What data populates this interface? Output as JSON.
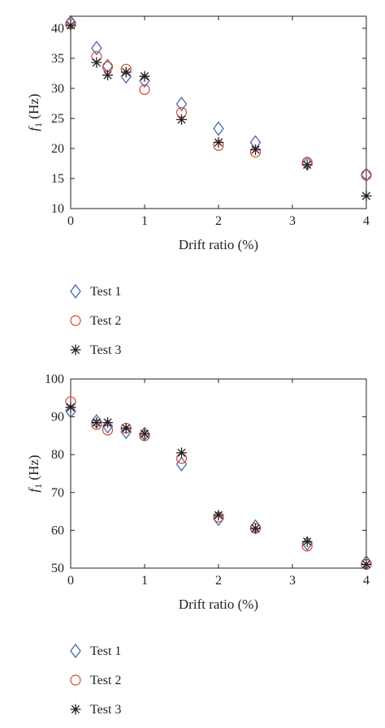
{
  "colors": {
    "test1": "#3a5fa8",
    "test2": "#d6472b",
    "test3": "#231f20",
    "axis": "#231f20"
  },
  "chart_data": [
    {
      "type": "scatter",
      "title": "",
      "xlabel": "Drift ratio (%)",
      "ylabel": {
        "main": "f",
        "sub": "1",
        "unit": " (Hz)"
      },
      "xlim": [
        0,
        4
      ],
      "ylim": [
        10,
        42
      ],
      "xticks": [
        0,
        1,
        2,
        3,
        4
      ],
      "yticks": [
        10,
        15,
        20,
        25,
        30,
        35,
        40
      ],
      "x": [
        0,
        0.35,
        0.5,
        0.75,
        1,
        1.5,
        2,
        2.5,
        3.2,
        4
      ],
      "series": [
        {
          "name": "Test 1",
          "marker": "diamond",
          "values": [
            41.0,
            36.7,
            33.7,
            32.0,
            31.3,
            27.4,
            23.3,
            21.0,
            17.5,
            15.6
          ]
        },
        {
          "name": "Test 2",
          "marker": "circle",
          "values": [
            40.7,
            35.3,
            33.6,
            33.2,
            29.8,
            26.0,
            20.5,
            19.4,
            17.7,
            15.6
          ]
        },
        {
          "name": "Test 3",
          "marker": "star",
          "values": [
            40.5,
            34.3,
            32.2,
            32.7,
            32.0,
            24.8,
            21.0,
            19.8,
            17.3,
            12.1
          ]
        }
      ],
      "grid": false,
      "legend": "below"
    },
    {
      "type": "scatter",
      "title": "",
      "xlabel": "Drift ratio (%)",
      "ylabel": {
        "main": "f",
        "sub": "1",
        "unit": " (Hz)"
      },
      "xlim": [
        0,
        4
      ],
      "ylim": [
        50,
        100
      ],
      "xticks": [
        0,
        1,
        2,
        3,
        4
      ],
      "yticks": [
        50,
        60,
        70,
        80,
        90,
        100
      ],
      "x": [
        0,
        0.35,
        0.5,
        0.75,
        1,
        1.5,
        2,
        2.5,
        3.2,
        4
      ],
      "series": [
        {
          "name": "Test 1",
          "marker": "diamond",
          "values": [
            91.5,
            88.8,
            87.5,
            86.0,
            85.5,
            77.5,
            63.0,
            61.0,
            56.5,
            51.5
          ]
        },
        {
          "name": "Test 2",
          "marker": "circle",
          "values": [
            94.0,
            88.0,
            86.5,
            87.0,
            85.0,
            79.0,
            63.5,
            60.5,
            55.8,
            51.0
          ]
        },
        {
          "name": "Test 3",
          "marker": "star",
          "values": [
            92.5,
            88.5,
            88.5,
            87.0,
            85.5,
            80.5,
            64.0,
            60.5,
            57.0,
            51.0
          ]
        }
      ],
      "grid": false,
      "legend": "below"
    }
  ]
}
